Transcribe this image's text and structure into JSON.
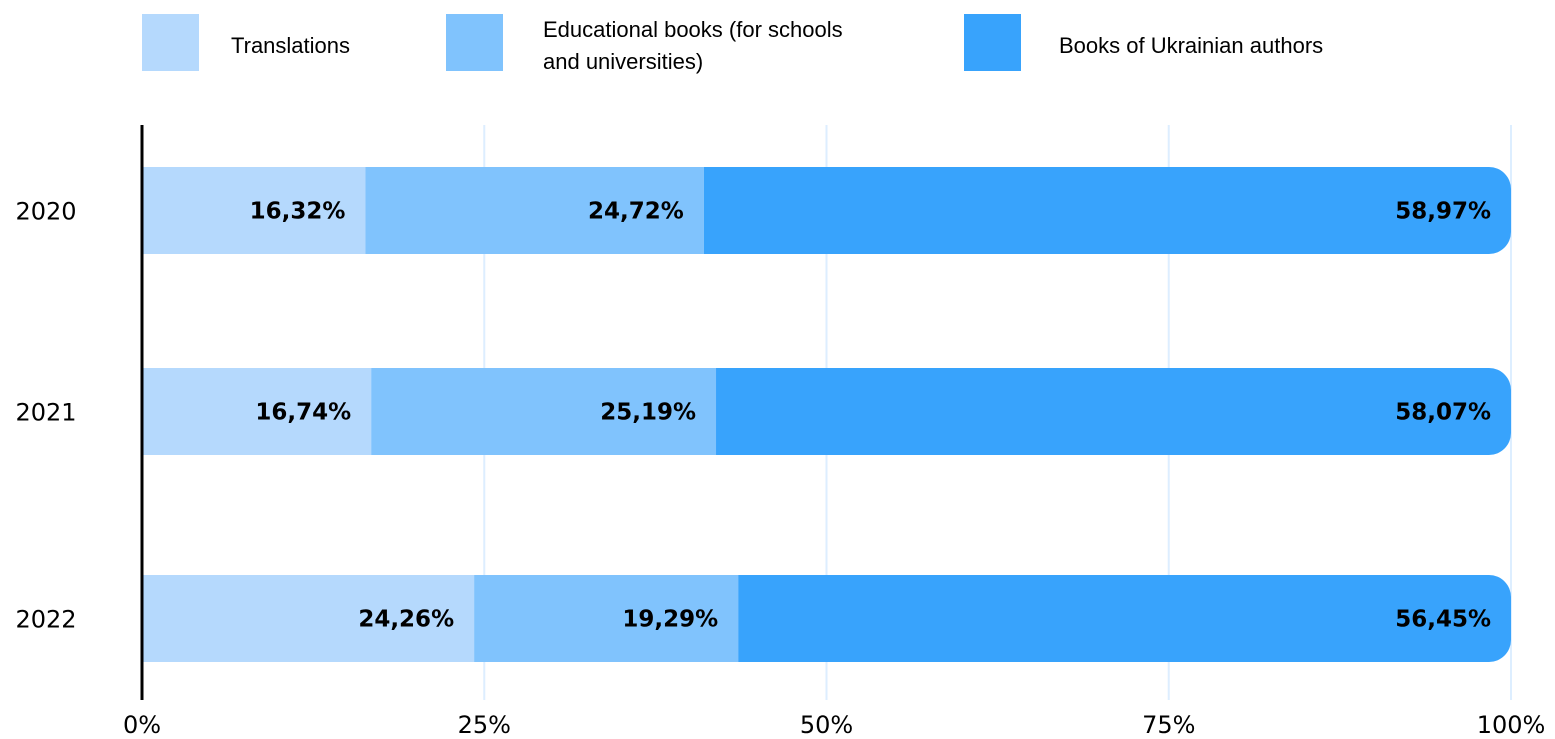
{
  "chart_data": {
    "type": "bar",
    "orientation": "horizontal",
    "stacked": true,
    "categories": [
      "2020",
      "2021",
      "2022"
    ],
    "series": [
      {
        "name": "Translations",
        "color": "#b5d9fd",
        "values": [
          16.32,
          16.74,
          24.26
        ],
        "labels": [
          "16,32%",
          "16,74%",
          "24,26%"
        ]
      },
      {
        "name": "Educational books (for schools and universities)",
        "name_lines": [
          "Educational books (for schools",
          "and universities)"
        ],
        "color": "#80c3fd",
        "values": [
          24.72,
          25.19,
          19.29
        ],
        "labels": [
          "24,72%",
          "25,19%",
          "19,29%"
        ]
      },
      {
        "name": "Books of Ukrainian authors",
        "color": "#38a3fc",
        "values": [
          58.97,
          58.07,
          56.45
        ],
        "labels": [
          "58,97%",
          "58,07%",
          "56,45%"
        ]
      }
    ],
    "x_ticks": [
      0,
      25,
      50,
      75,
      100
    ],
    "x_tick_labels": [
      "0%",
      "25%",
      "50%",
      "75%",
      "100%"
    ],
    "xlim": [
      0,
      100
    ],
    "title": "",
    "xlabel": "",
    "ylabel": "",
    "grid": "vertical",
    "legend": "top"
  }
}
